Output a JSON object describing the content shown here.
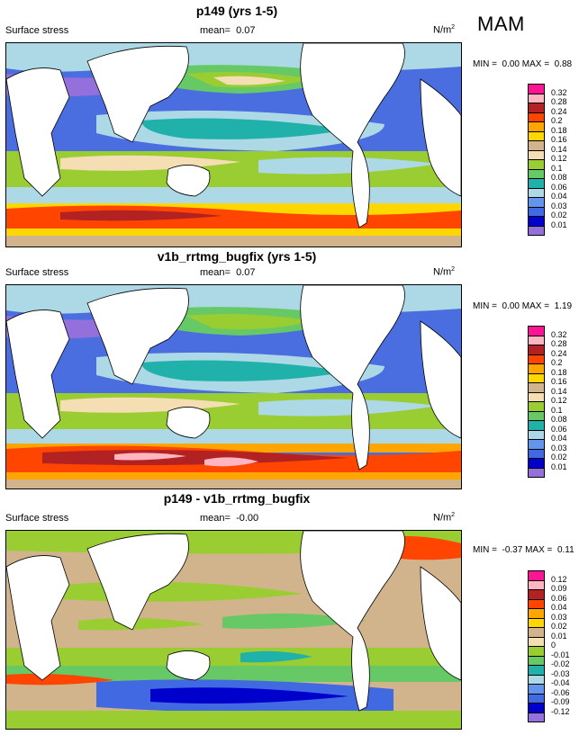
{
  "season": "MAM",
  "panels": [
    {
      "title": "p149 (yrs 1-5)",
      "variable": "Surface stress",
      "mean_label": "mean=",
      "mean_value": "0.07",
      "unit": "N/m",
      "unit_exp": "2",
      "min_label": "MIN =",
      "min_value": "0.00",
      "max_label": "MAX =",
      "max_value": "0.88",
      "legend": {
        "labels": [
          "0.32",
          "0.28",
          "0.24",
          "0.2",
          "0.18",
          "0.16",
          "0.14",
          "0.12",
          "0.1",
          "0.08",
          "0.06",
          "0.04",
          "0.03",
          "0.02",
          "0.01"
        ],
        "colors": [
          "#ff1493",
          "#ffb6c1",
          "#b22222",
          "#ff4500",
          "#ffa500",
          "#ffd700",
          "#d2b48c",
          "#f5deb3",
          "#9acd32",
          "#66c966",
          "#20b2aa",
          "#add8e6",
          "#6495ed",
          "#4169e1",
          "#0000cd",
          "#9370db"
        ]
      }
    },
    {
      "title": "v1b_rrtmg_bugfix (yrs 1-5)",
      "variable": "Surface stress",
      "mean_label": "mean=",
      "mean_value": "0.07",
      "unit": "N/m",
      "unit_exp": "2",
      "min_label": "MIN =",
      "min_value": "0.00",
      "max_label": "MAX =",
      "max_value": "1.19",
      "legend": {
        "labels": [
          "0.32",
          "0.28",
          "0.24",
          "0.2",
          "0.18",
          "0.16",
          "0.14",
          "0.12",
          "0.1",
          "0.08",
          "0.06",
          "0.04",
          "0.03",
          "0.02",
          "0.01"
        ],
        "colors": [
          "#ff1493",
          "#ffb6c1",
          "#b22222",
          "#ff4500",
          "#ffa500",
          "#ffd700",
          "#d2b48c",
          "#f5deb3",
          "#9acd32",
          "#66c966",
          "#20b2aa",
          "#add8e6",
          "#6495ed",
          "#4169e1",
          "#0000cd",
          "#9370db"
        ]
      }
    },
    {
      "title": "p149 - v1b_rrtmg_bugfix",
      "variable": "Surface stress",
      "mean_label": "mean=",
      "mean_value": "-0.00",
      "unit": "N/m",
      "unit_exp": "2",
      "min_label": "MIN =",
      "min_value": "-0.37",
      "max_label": "MAX =",
      "max_value": "0.11",
      "legend": {
        "labels": [
          "0.12",
          "0.09",
          "0.06",
          "0.04",
          "0.03",
          "0.02",
          "0.01",
          "0",
          "-0.01",
          "-0.02",
          "-0.03",
          "-0.04",
          "-0.06",
          "-0.09",
          "-0.12"
        ],
        "colors": [
          "#ff1493",
          "#ffb6c1",
          "#b22222",
          "#ff4500",
          "#ffa500",
          "#ffd700",
          "#d2b48c",
          "#f5deb3",
          "#9acd32",
          "#66c966",
          "#20b2aa",
          "#add8e6",
          "#6495ed",
          "#4169e1",
          "#0000cd",
          "#9370db"
        ]
      }
    }
  ]
}
